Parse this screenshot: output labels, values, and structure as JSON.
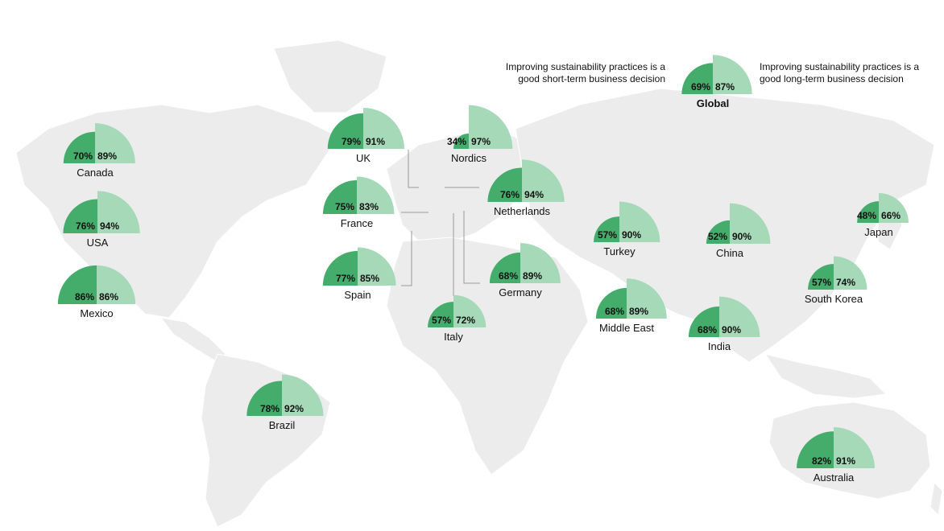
{
  "legend": {
    "short_term": "Improving sustainability practices is a good short-term business decision",
    "long_term": "Improving sustainability practices is a good long-term business decision"
  },
  "colors": {
    "short_term": "#45ad6b",
    "long_term": "#a5d9b7",
    "land": "#ececec"
  },
  "chart_data": {
    "type": "pie",
    "series": [
      {
        "name": "Improving sustainability practices is a good short-term business decision"
      },
      {
        "name": "Improving sustainability practices is a good long-term business decision"
      }
    ],
    "regions": [
      {
        "name": "Global",
        "short_term": 69,
        "long_term": 87
      },
      {
        "name": "Canada",
        "short_term": 70,
        "long_term": 89
      },
      {
        "name": "USA",
        "short_term": 76,
        "long_term": 94
      },
      {
        "name": "Mexico",
        "short_term": 86,
        "long_term": 86
      },
      {
        "name": "Brazil",
        "short_term": 78,
        "long_term": 92
      },
      {
        "name": "UK",
        "short_term": 79,
        "long_term": 91
      },
      {
        "name": "Nordics",
        "short_term": 34,
        "long_term": 97
      },
      {
        "name": "France",
        "short_term": 75,
        "long_term": 83
      },
      {
        "name": "Netherlands",
        "short_term": 76,
        "long_term": 94
      },
      {
        "name": "Spain",
        "short_term": 77,
        "long_term": 85
      },
      {
        "name": "Germany",
        "short_term": 68,
        "long_term": 89
      },
      {
        "name": "Italy",
        "short_term": 57,
        "long_term": 72
      },
      {
        "name": "Turkey",
        "short_term": 57,
        "long_term": 90
      },
      {
        "name": "Middle East",
        "short_term": 68,
        "long_term": 89
      },
      {
        "name": "China",
        "short_term": 52,
        "long_term": 90
      },
      {
        "name": "India",
        "short_term": 68,
        "long_term": 90
      },
      {
        "name": "Japan",
        "short_term": 48,
        "long_term": 66
      },
      {
        "name": "South Korea",
        "short_term": 57,
        "long_term": 74
      },
      {
        "name": "Australia",
        "short_term": 82,
        "long_term": 91
      }
    ]
  }
}
